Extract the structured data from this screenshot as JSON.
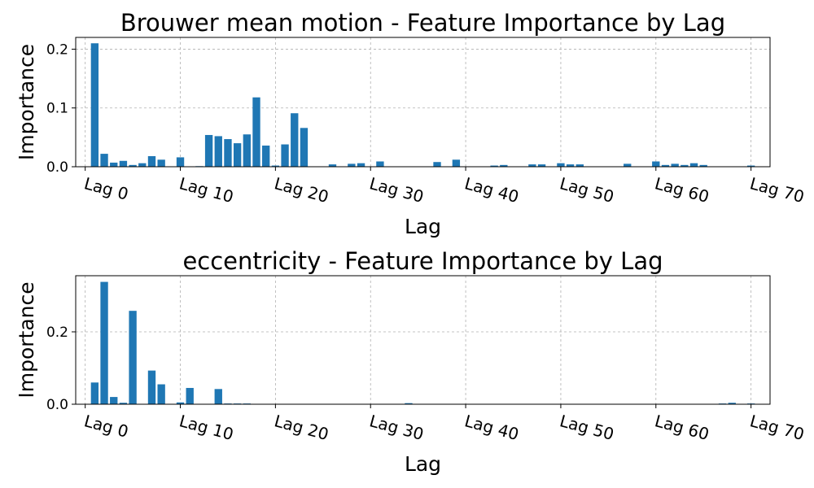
{
  "chart_data": [
    {
      "type": "bar",
      "title": "Brouwer mean motion - Feature Importance by Lag",
      "xlabel": "Lag",
      "ylabel": "Importance",
      "ylim": [
        0,
        0.22
      ],
      "xlim": [
        -1,
        72
      ],
      "yticks": [
        0.0,
        0.1,
        0.2
      ],
      "yticklabels": [
        "0.0",
        "0.1",
        "0.2"
      ],
      "xticks": [
        0,
        10,
        20,
        30,
        40,
        50,
        60,
        70
      ],
      "xticklabels": [
        "Lag 0",
        "Lag 10",
        "Lag 20",
        "Lag 30",
        "Lag 40",
        "Lag 50",
        "Lag 60",
        "Lag 70"
      ],
      "grid": true,
      "color": "#1f77b4",
      "x": [
        1,
        2,
        3,
        4,
        5,
        6,
        7,
        8,
        10,
        12,
        13,
        14,
        15,
        16,
        17,
        18,
        19,
        20,
        21,
        22,
        23,
        26,
        28,
        29,
        31,
        37,
        39,
        43,
        44,
        47,
        48,
        50,
        51,
        52,
        57,
        60,
        61,
        62,
        63,
        64,
        65,
        70
      ],
      "values": [
        0.21,
        0.022,
        0.007,
        0.01,
        0.003,
        0.006,
        0.018,
        0.012,
        0.016,
        0.001,
        0.054,
        0.052,
        0.047,
        0.04,
        0.055,
        0.118,
        0.036,
        0.002,
        0.038,
        0.091,
        0.066,
        0.004,
        0.005,
        0.006,
        0.009,
        0.008,
        0.012,
        0.002,
        0.003,
        0.004,
        0.004,
        0.006,
        0.004,
        0.004,
        0.005,
        0.009,
        0.003,
        0.005,
        0.003,
        0.006,
        0.003,
        0.002
      ]
    },
    {
      "type": "bar",
      "title": "eccentricity - Feature Importance by Lag",
      "xlabel": "Lag",
      "ylabel": "Importance",
      "ylim": [
        0,
        0.355
      ],
      "xlim": [
        -1,
        72
      ],
      "yticks": [
        0.0,
        0.2
      ],
      "yticklabels": [
        "0.0",
        "0.2"
      ],
      "xticks": [
        0,
        10,
        20,
        30,
        40,
        50,
        60,
        70
      ],
      "xticklabels": [
        "Lag 0",
        "Lag 10",
        "Lag 20",
        "Lag 30",
        "Lag 40",
        "Lag 50",
        "Lag 60",
        "Lag 70"
      ],
      "grid": true,
      "color": "#1f77b4",
      "x": [
        1,
        2,
        3,
        4,
        5,
        7,
        8,
        10,
        11,
        14,
        15,
        16,
        17,
        24,
        25,
        27,
        31,
        34,
        39,
        42,
        47,
        50,
        52,
        54,
        56,
        59,
        62,
        63,
        64,
        67,
        68,
        70
      ],
      "values": [
        0.06,
        0.338,
        0.02,
        0.004,
        0.258,
        0.093,
        0.055,
        0.005,
        0.045,
        0.042,
        0.002,
        0.002,
        0.002,
        0.001,
        0.001,
        0.001,
        0.001,
        0.003,
        0.001,
        0.001,
        0.001,
        0.001,
        0.001,
        0.001,
        0.001,
        0.001,
        0.001,
        0.001,
        0.001,
        0.002,
        0.004,
        0.002
      ]
    }
  ]
}
